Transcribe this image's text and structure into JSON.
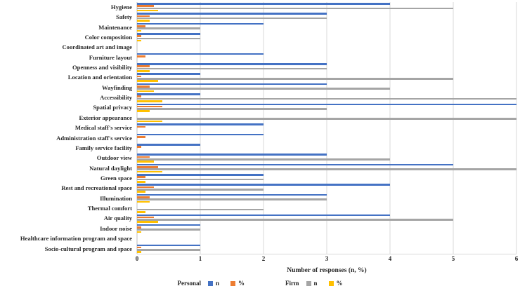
{
  "chart_data": {
    "type": "bar",
    "orientation": "horizontal",
    "title": "",
    "xlabel": "Number of responses (n, %)",
    "xlim": [
      0,
      6
    ],
    "xticks": [
      0,
      1,
      2,
      3,
      4,
      5,
      6
    ],
    "grid": true,
    "legend_position": "bottom",
    "categories": [
      "Hygiene",
      "Safety",
      "Maintenance",
      "Color composition",
      "Coordinated art and image",
      "Furniture layout",
      "Openness and visibility",
      "Location and orientation",
      "Wayfinding",
      "Accessibility",
      "Spatial privacy",
      "Exterior appearance",
      "Medical staff's service",
      "Administration staff's service",
      "Family service facility",
      "Outdoor view",
      "Natural daylight",
      "Green space",
      "Rest and recreational space",
      "Illumination",
      "Thermal comfort",
      "Air quality",
      "Indoor noise",
      "Healthcare information program and space",
      "Socio-cultural program and space"
    ],
    "series": [
      {
        "key": "personal-n",
        "group": "Personal",
        "name": "n",
        "color": "#4472C4",
        "values": [
          4,
          3,
          2,
          1,
          0,
          2,
          3,
          1,
          3,
          1,
          6,
          0,
          2,
          2,
          1,
          3,
          5,
          2,
          4,
          3,
          0,
          4,
          1,
          0,
          1
        ]
      },
      {
        "key": "personal-pct",
        "group": "Personal",
        "name": "%",
        "color": "#ED7D31",
        "values": [
          0.27,
          0.2,
          0.13,
          0.07,
          0,
          0.13,
          0.2,
          0.07,
          0.2,
          0.07,
          0.4,
          0,
          0.13,
          0.13,
          0.07,
          0.2,
          0.33,
          0.13,
          0.27,
          0.2,
          0,
          0.27,
          0.07,
          0,
          0.07
        ]
      },
      {
        "key": "firm-n",
        "group": "Firm",
        "name": "n",
        "color": "#A5A5A5",
        "values": [
          5,
          3,
          1,
          1,
          0,
          0,
          3,
          5,
          4,
          6,
          3,
          6,
          0,
          0,
          0,
          4,
          6,
          2,
          2,
          3,
          2,
          5,
          1,
          0,
          1
        ]
      },
      {
        "key": "firm-pct",
        "group": "Firm",
        "name": "%",
        "color": "#FFC000",
        "values": [
          0.33,
          0.2,
          0.07,
          0.07,
          0,
          0,
          0.2,
          0.33,
          0.27,
          0.4,
          0.2,
          0.4,
          0,
          0,
          0,
          0.27,
          0.4,
          0.13,
          0.13,
          0.2,
          0.13,
          0.33,
          0.07,
          0,
          0.07
        ]
      }
    ],
    "legend": {
      "groups": [
        {
          "label": "Personal",
          "items": [
            {
              "label": "n",
              "color": "#4472C4"
            },
            {
              "label": "%",
              "color": "#ED7D31"
            }
          ]
        },
        {
          "label": "Firm",
          "items": [
            {
              "label": "n",
              "color": "#A5A5A5"
            },
            {
              "label": "%",
              "color": "#FFC000"
            }
          ]
        }
      ]
    },
    "colors": {
      "gridline": "#D9D9D9",
      "axis_line": "#BFBFBF",
      "text": "#262626"
    }
  }
}
